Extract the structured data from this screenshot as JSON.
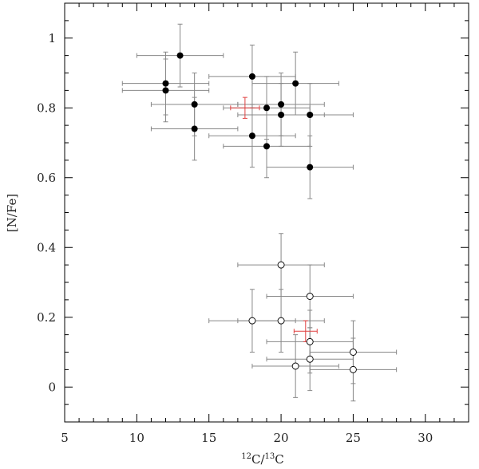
{
  "chart_data": {
    "type": "scatter",
    "xlabel": {
      "sup1": "12",
      "mid": "C/",
      "sup2": "13",
      "end": "C"
    },
    "ylabel": "[N/Fe]",
    "xlim": [
      5,
      33
    ],
    "ylim": [
      -0.1,
      1.1
    ],
    "x_ticks": [
      5,
      10,
      15,
      20,
      25,
      30
    ],
    "y_ticks": [
      0,
      0.2,
      0.4,
      0.6,
      0.8,
      1
    ],
    "y_tick_labels": [
      "0",
      "0.2",
      "0.4",
      "0.6",
      "0.8",
      "1"
    ],
    "grid": false,
    "colors": {
      "frame": "#000000",
      "errorbar": "#888888",
      "filled": "#000000",
      "mean_errorbar": "#e04040"
    },
    "series": [
      {
        "marker": "filled-circle",
        "points": [
          {
            "x": 12,
            "y": 0.87,
            "xerr": 3,
            "yerr": 0.09
          },
          {
            "x": 12,
            "y": 0.85,
            "xerr": 3,
            "yerr": 0.09
          },
          {
            "x": 13,
            "y": 0.95,
            "xerr": 3,
            "yerr": 0.09
          },
          {
            "x": 14,
            "y": 0.81,
            "xerr": 3,
            "yerr": 0.09
          },
          {
            "x": 14,
            "y": 0.74,
            "xerr": 3,
            "yerr": 0.09
          },
          {
            "x": 18,
            "y": 0.89,
            "xerr": 3,
            "yerr": 0.09
          },
          {
            "x": 18,
            "y": 0.72,
            "xerr": 3,
            "yerr": 0.09
          },
          {
            "x": 19,
            "y": 0.8,
            "xerr": 3,
            "yerr": 0.09
          },
          {
            "x": 19,
            "y": 0.69,
            "xerr": 3,
            "yerr": 0.09
          },
          {
            "x": 20,
            "y": 0.81,
            "xerr": 3,
            "yerr": 0.09
          },
          {
            "x": 20,
            "y": 0.78,
            "xerr": 3,
            "yerr": 0.09
          },
          {
            "x": 21,
            "y": 0.87,
            "xerr": 3,
            "yerr": 0.09
          },
          {
            "x": 22,
            "y": 0.78,
            "xerr": 3,
            "yerr": 0.09
          },
          {
            "x": 22,
            "y": 0.63,
            "xerr": 3,
            "yerr": 0.09
          }
        ]
      },
      {
        "marker": "open-circle",
        "points": [
          {
            "x": 20,
            "y": 0.35,
            "xerr": 3,
            "yerr": 0.09
          },
          {
            "x": 22,
            "y": 0.26,
            "xerr": 3,
            "yerr": 0.09
          },
          {
            "x": 18,
            "y": 0.19,
            "xerr": 3,
            "yerr": 0.09
          },
          {
            "x": 20,
            "y": 0.19,
            "xerr": 3,
            "yerr": 0.09
          },
          {
            "x": 22,
            "y": 0.13,
            "xerr": 3,
            "yerr": 0.09
          },
          {
            "x": 22,
            "y": 0.08,
            "xerr": 3,
            "yerr": 0.09
          },
          {
            "x": 21,
            "y": 0.06,
            "xerr": 3,
            "yerr": 0.09
          },
          {
            "x": 25,
            "y": 0.1,
            "xerr": 3,
            "yerr": 0.09
          },
          {
            "x": 25,
            "y": 0.05,
            "xerr": 3,
            "yerr": 0.09
          }
        ]
      },
      {
        "marker": "errorbar-only",
        "points": [
          {
            "x": 17.5,
            "y": 0.8,
            "xerr": 1.0,
            "yerr": 0.03
          },
          {
            "x": 21.7,
            "y": 0.16,
            "xerr": 0.8,
            "yerr": 0.03
          }
        ]
      }
    ]
  }
}
